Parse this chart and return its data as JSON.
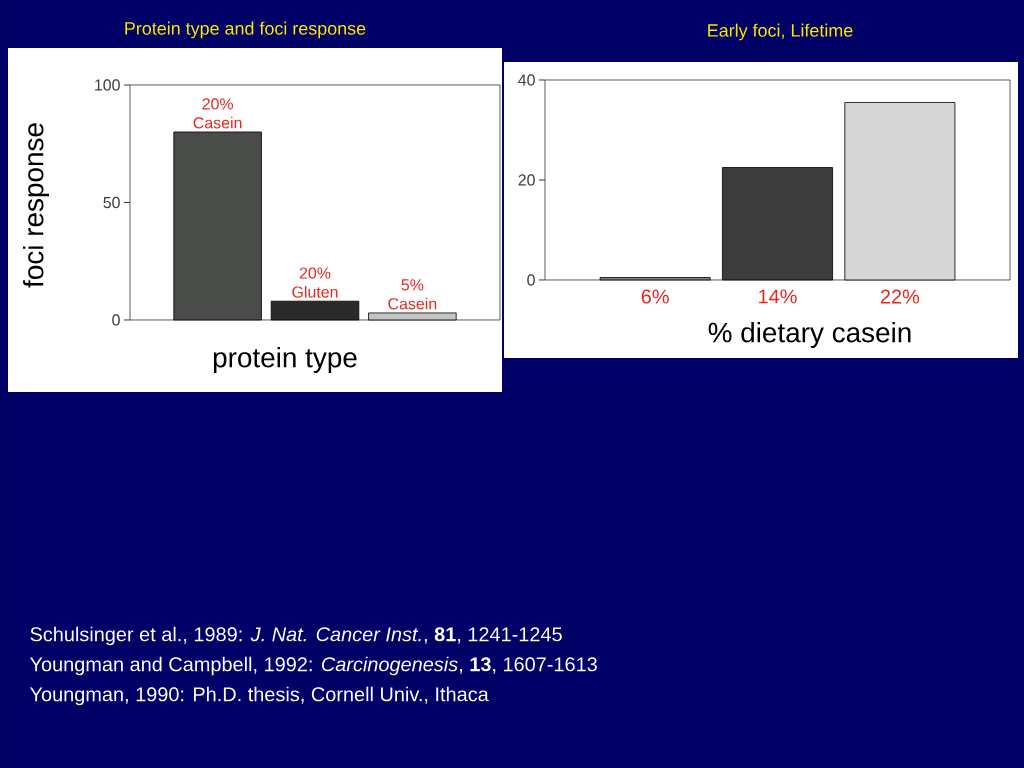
{
  "chart_data": [
    {
      "type": "bar",
      "title": "Protein type and foci response",
      "xlabel": "protein type",
      "ylabel": "foci response",
      "categories": [
        "20% Casein",
        "20% Gluten",
        "5% Casein"
      ],
      "values": [
        80,
        8,
        3
      ],
      "colors": [
        "#4a4c4a",
        "#2a2a2a",
        "#c4c4c4"
      ],
      "ylim": [
        0,
        100
      ],
      "yticks": [
        0,
        50,
        100
      ]
    },
    {
      "type": "bar",
      "title": "Early foci, Lifetime",
      "xlabel": "% dietary casein",
      "categories": [
        "6%",
        "14%",
        "22%"
      ],
      "values": [
        0.5,
        22.5,
        35.5
      ],
      "colors": [
        "#808080",
        "#3c3c3c",
        "#d6d6d6"
      ],
      "ylim": [
        0,
        40
      ],
      "yticks": [
        0,
        20,
        40
      ]
    },
    {
      "type": "other",
      "annotations": [
        "Schulsinger et al., 1989: *J. Nat. Cancer Inst.*, **81**, 1241-1245",
        "Youngman and Campbell, 1992: *Carcinogenesis*, **13**, 1607-1613",
        "Youngman, 1990: Ph.D. thesis, Cornell Univ., Ithaca"
      ]
    }
  ]
}
